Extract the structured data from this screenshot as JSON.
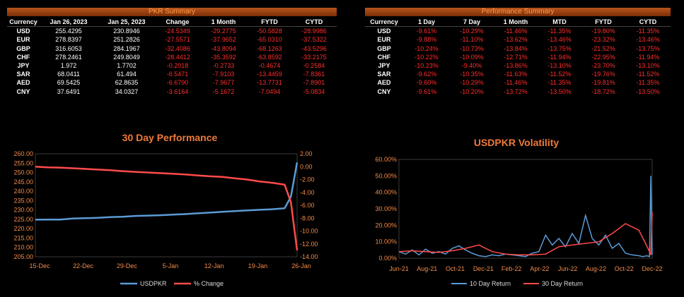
{
  "pkr_summary": {
    "title": "PKR Summary",
    "headers": [
      "Currency",
      "Jan 26, 2023",
      "Jan 25, 2023",
      "Change",
      "1 Month",
      "FYTD",
      "CYTD"
    ],
    "rows": [
      [
        "USD",
        "255.4295",
        "230.8946",
        "-24.5349",
        "-29.2775",
        "-50.5828",
        "-28.9986"
      ],
      [
        "EUR",
        "278.8397",
        "251.2826",
        "-27.5571",
        "-37.9652",
        "-65.0310",
        "-37.5322"
      ],
      [
        "GBP",
        "316.6053",
        "284.1967",
        "-32.4086",
        "-43.8094",
        "-68.1263",
        "-43.5296"
      ],
      [
        "CHF",
        "278.2461",
        "249.8049",
        "-28.4412",
        "-35.3592",
        "-63.8592",
        "-33.2175"
      ],
      [
        "JPY",
        "1.972",
        "1.7702",
        "-0.2018",
        "-0.2733",
        "-0.4674",
        "-0.2584"
      ],
      [
        "SAR",
        "68.0411",
        "61.494",
        "-6.5471",
        "-7.9103",
        "-13.4459",
        "-7.8361"
      ],
      [
        "AED",
        "69.5425",
        "62.8635",
        "-6.6790",
        "-7.9677",
        "-13.7731",
        "-7.8901"
      ],
      [
        "CNY",
        "37.6491",
        "34.0327",
        "-3.6164",
        "-5.1672",
        "-7.0494",
        "-5.0834"
      ]
    ]
  },
  "performance_summary": {
    "title": "Performance Summary",
    "headers": [
      "Currency",
      "1 Day",
      "7 Day",
      "1 Month",
      "MTD",
      "FYTD",
      "CYTD"
    ],
    "rows": [
      [
        "USD",
        "-9.61%",
        "-10.29%",
        "-11.46%",
        "-11.35%",
        "-19.80%",
        "-11.35%"
      ],
      [
        "EUR",
        "-9.88%",
        "-11.10%",
        "-13.62%",
        "-13.46%",
        "-23.32%",
        "-13.46%"
      ],
      [
        "GBP",
        "-10.24%",
        "-10.73%",
        "-13.84%",
        "-13.75%",
        "-21.52%",
        "-13.75%"
      ],
      [
        "CHF",
        "-10.22%",
        "-10.09%",
        "-12.71%",
        "-11.94%",
        "-22.95%",
        "-11.94%"
      ],
      [
        "JPY",
        "-10.23%",
        "-9.40%",
        "-13.86%",
        "-13.10%",
        "-23.70%",
        "-13.10%"
      ],
      [
        "SAR",
        "-9.62%",
        "-10.35%",
        "-11.63%",
        "-11.52%",
        "-19.76%",
        "-11.52%"
      ],
      [
        "AED",
        "-9.60%",
        "-10.29%",
        "-11.46%",
        "-11.35%",
        "-19.81%",
        "-11.35%"
      ],
      [
        "CNY",
        "-9.61%",
        "-10.20%",
        "-13.72%",
        "-13.50%",
        "-18.72%",
        "-13.50%"
      ]
    ]
  },
  "colors": {
    "negative": "#ff2d2d",
    "accent": "#ef7a3a",
    "blue_series": "#5b9bd5",
    "red_series": "#ff4b4b"
  },
  "chart_data": [
    {
      "type": "line",
      "title": "30 Day Performance",
      "x_ticks": [
        "15-Dec",
        "22-Dec",
        "29-Dec",
        "5-Jan",
        "12-Jan",
        "19-Jan",
        "26-Jan"
      ],
      "y_left_ticks": [
        "260.00",
        "255.00",
        "250.00",
        "245.00",
        "240.00",
        "235.00",
        "230.00",
        "225.00",
        "220.00",
        "215.00",
        "210.00",
        "205.00"
      ],
      "y_right_ticks": [
        "2.00",
        "0.00",
        "-2.00",
        "-4.00",
        "-6.00",
        "-8.00",
        "-10.00",
        "-12.00",
        "-14.00"
      ],
      "ylim_left": [
        205,
        260
      ],
      "ylim_right": [
        -14,
        2
      ],
      "x_range": [
        0,
        42
      ],
      "series": [
        {
          "name": "USDPKR",
          "axis": "left",
          "color": "#5b9bd5",
          "x": [
            0,
            2,
            4,
            6,
            8,
            10,
            12,
            14,
            16,
            18,
            20,
            22,
            24,
            26,
            28,
            30,
            32,
            34,
            36,
            38,
            40,
            41,
            42
          ],
          "y": [
            224.8,
            224.9,
            224.9,
            225.4,
            225.6,
            225.8,
            226.2,
            226.4,
            226.8,
            227.0,
            227.2,
            227.5,
            227.8,
            228.2,
            228.6,
            229.0,
            229.4,
            229.8,
            230.1,
            230.4,
            230.9,
            237.0,
            255.4
          ]
        },
        {
          "name": "% Change",
          "axis": "right",
          "color": "#ff4b4b",
          "x": [
            0,
            2,
            4,
            6,
            8,
            10,
            12,
            14,
            16,
            18,
            20,
            22,
            24,
            26,
            28,
            30,
            32,
            34,
            36,
            38,
            40,
            41,
            42
          ],
          "y": [
            0.0,
            -0.1,
            -0.15,
            -0.25,
            -0.35,
            -0.45,
            -0.55,
            -0.7,
            -0.8,
            -0.9,
            -1.0,
            -1.1,
            -1.2,
            -1.35,
            -1.5,
            -1.6,
            -1.8,
            -2.0,
            -2.3,
            -2.5,
            -2.8,
            -5.5,
            -13.0
          ]
        }
      ]
    },
    {
      "type": "line",
      "title": "USDPKR Volatility",
      "x_ticks": [
        "Jun-21",
        "Aug-21",
        "Oct-21",
        "Dec-21",
        "Feb-22",
        "Apr-22",
        "Jun-22",
        "Aug-22",
        "Oct-22",
        "Dec-22"
      ],
      "y_ticks": [
        "60.00%",
        "50.00%",
        "40.00%",
        "30.00%",
        "20.00%",
        "10.00%",
        "0.00%"
      ],
      "ylim": [
        0,
        60
      ],
      "x_range": [
        0,
        19
      ],
      "series": [
        {
          "name": "10 Day Return",
          "color": "#5b9bd5",
          "x": [
            0,
            0.5,
            1,
            1.5,
            2,
            2.5,
            3,
            3.5,
            4,
            4.5,
            5,
            5.5,
            6,
            6.5,
            7,
            7.5,
            8,
            8.5,
            9,
            9.5,
            10,
            10.5,
            11,
            11.5,
            12,
            12.5,
            13,
            13.5,
            14,
            14.5,
            15,
            15.5,
            16,
            16.5,
            17,
            17.5,
            18,
            18.3,
            18.6,
            18.8,
            18.9,
            19
          ],
          "y": [
            4,
            2.5,
            5,
            2,
            5.5,
            3,
            4,
            2.5,
            6,
            7.5,
            5,
            3,
            1.5,
            1,
            2,
            1.5,
            2.5,
            2,
            1.5,
            1,
            3,
            4,
            14,
            8,
            12,
            7,
            15,
            9,
            26,
            12,
            8,
            14,
            6,
            9,
            3,
            2,
            1.5,
            1,
            1.5,
            1,
            50,
            2
          ]
        },
        {
          "name": "30 Day Return",
          "color": "#ff4b4b",
          "x": [
            0,
            1,
            2,
            3,
            4,
            5,
            6,
            7,
            8,
            9,
            10,
            11,
            12,
            13,
            14,
            15,
            16,
            17,
            18,
            18.5,
            18.8,
            18.9,
            19
          ],
          "y": [
            4,
            4.5,
            4,
            3.5,
            4.5,
            6,
            8,
            4,
            2.5,
            2,
            2,
            2.5,
            7,
            8,
            9,
            10,
            15,
            21,
            17,
            9,
            4,
            2,
            28
          ]
        }
      ]
    }
  ]
}
